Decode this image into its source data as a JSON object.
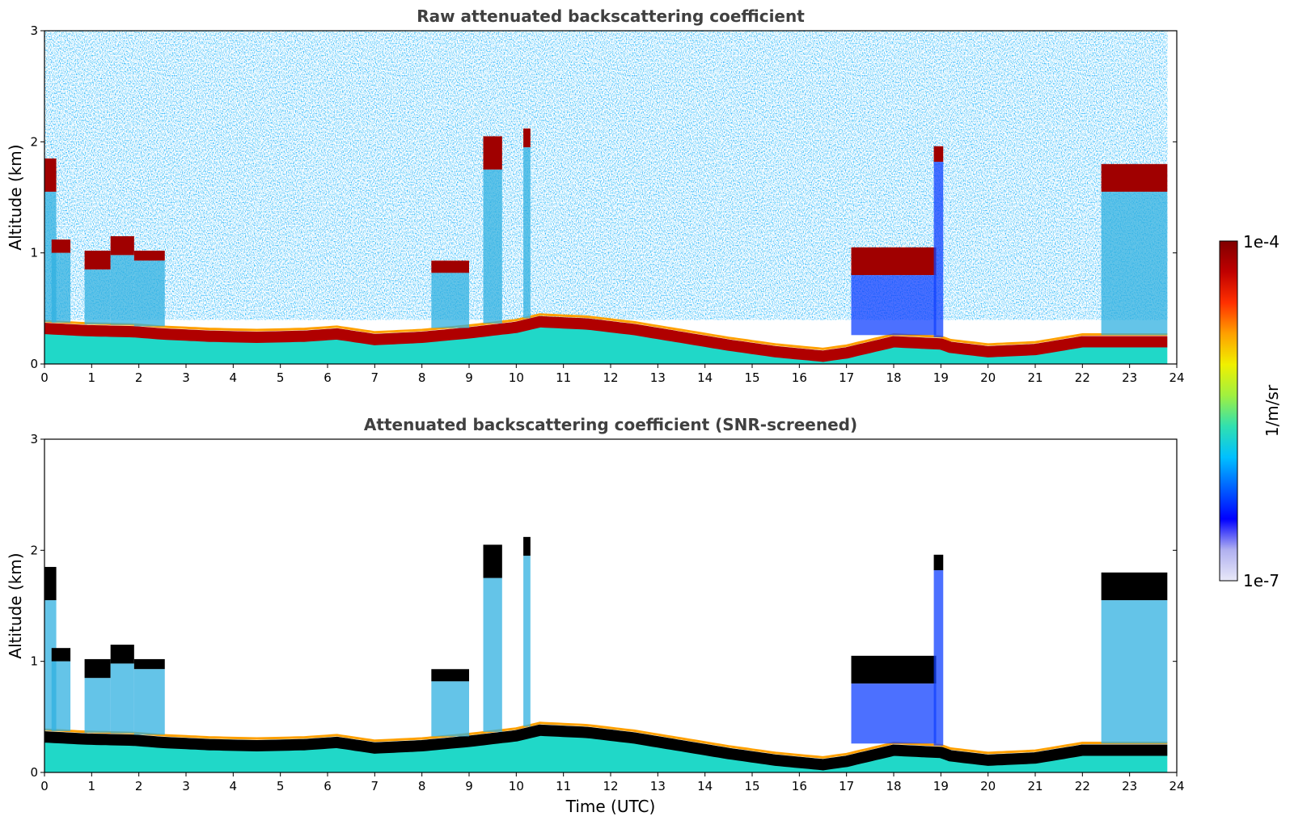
{
  "chart_data": [
    {
      "type": "heatmap",
      "title": "Raw attenuated backscattering coefficient",
      "xlabel": "",
      "ylabel": "Altitude (km)",
      "xlim": [
        0,
        24
      ],
      "ylim": [
        0,
        3
      ],
      "xticks": [
        "0",
        "1",
        "2",
        "3",
        "4",
        "5",
        "6",
        "7",
        "8",
        "9",
        "10",
        "11",
        "12",
        "13",
        "14",
        "15",
        "16",
        "17",
        "18",
        "19",
        "20",
        "21",
        "22",
        "23",
        "24"
      ],
      "yticks": [
        "0",
        "1",
        "2",
        "3"
      ],
      "colormap": "jet",
      "screened": false,
      "boundary_layer_top_km": [
        [
          0,
          0.32
        ],
        [
          0.9,
          0.3
        ],
        [
          1.9,
          0.29
        ],
        [
          2.5,
          0.27
        ],
        [
          3.5,
          0.25
        ],
        [
          4.5,
          0.24
        ],
        [
          5.5,
          0.25
        ],
        [
          6.2,
          0.27
        ],
        [
          7.0,
          0.22
        ],
        [
          8.0,
          0.24
        ],
        [
          9.0,
          0.28
        ],
        [
          10.0,
          0.33
        ],
        [
          10.5,
          0.38
        ],
        [
          11.5,
          0.36
        ],
        [
          12.5,
          0.31
        ],
        [
          13.5,
          0.24
        ],
        [
          14.5,
          0.17
        ],
        [
          15.5,
          0.11
        ],
        [
          16.5,
          0.07
        ],
        [
          17.0,
          0.1
        ],
        [
          18.0,
          0.2
        ],
        [
          19.0,
          0.18
        ],
        [
          19.2,
          0.15
        ],
        [
          20.0,
          0.11
        ],
        [
          21.0,
          0.13
        ],
        [
          22.0,
          0.2
        ],
        [
          23.0,
          0.2
        ],
        [
          23.8,
          0.2
        ]
      ],
      "cloud_layers": [
        {
          "t0": 0.0,
          "t1": 0.25,
          "base_km": 1.55,
          "top_km": 1.85
        },
        {
          "t0": 0.15,
          "t1": 0.55,
          "base_km": 1.0,
          "top_km": 1.12
        },
        {
          "t0": 0.85,
          "t1": 1.4,
          "base_km": 0.85,
          "top_km": 1.02
        },
        {
          "t0": 1.4,
          "t1": 1.9,
          "base_km": 0.98,
          "top_km": 1.15
        },
        {
          "t0": 1.9,
          "t1": 2.55,
          "base_km": 0.93,
          "top_km": 1.02
        },
        {
          "t0": 8.2,
          "t1": 9.0,
          "base_km": 0.82,
          "top_km": 0.93
        },
        {
          "t0": 9.3,
          "t1": 9.7,
          "base_km": 1.75,
          "top_km": 2.05
        },
        {
          "t0": 10.15,
          "t1": 10.3,
          "base_km": 1.95,
          "top_km": 2.12
        },
        {
          "t0": 17.1,
          "t1": 18.9,
          "base_km": 0.8,
          "top_km": 1.05
        },
        {
          "t0": 18.85,
          "t1": 19.05,
          "base_km": 1.82,
          "top_km": 1.96
        },
        {
          "t0": 22.4,
          "t1": 23.8,
          "base_km": 1.55,
          "top_km": 1.8
        }
      ]
    },
    {
      "type": "heatmap",
      "title": "Attenuated backscattering coefficient (SNR-screened)",
      "xlabel": "Time (UTC)",
      "ylabel": "Altitude (km)",
      "xlim": [
        0,
        24
      ],
      "ylim": [
        0,
        3
      ],
      "xticks": [
        "0",
        "1",
        "2",
        "3",
        "4",
        "5",
        "6",
        "7",
        "8",
        "9",
        "10",
        "11",
        "12",
        "13",
        "14",
        "15",
        "16",
        "17",
        "18",
        "19",
        "20",
        "21",
        "22",
        "23",
        "24"
      ],
      "yticks": [
        "0",
        "1",
        "2",
        "3"
      ],
      "colormap": "jet",
      "screened": true
    }
  ],
  "colorbar": {
    "label": "1/m/sr",
    "max_label": "1e-4",
    "min_label": "1e-7",
    "stops": [
      "#e8e8f8",
      "#b0b0f0",
      "#0000ff",
      "#0060ff",
      "#00c0ff",
      "#30e0b0",
      "#a0f040",
      "#f0f000",
      "#ffa000",
      "#ff3000",
      "#c00000",
      "#800000"
    ]
  }
}
